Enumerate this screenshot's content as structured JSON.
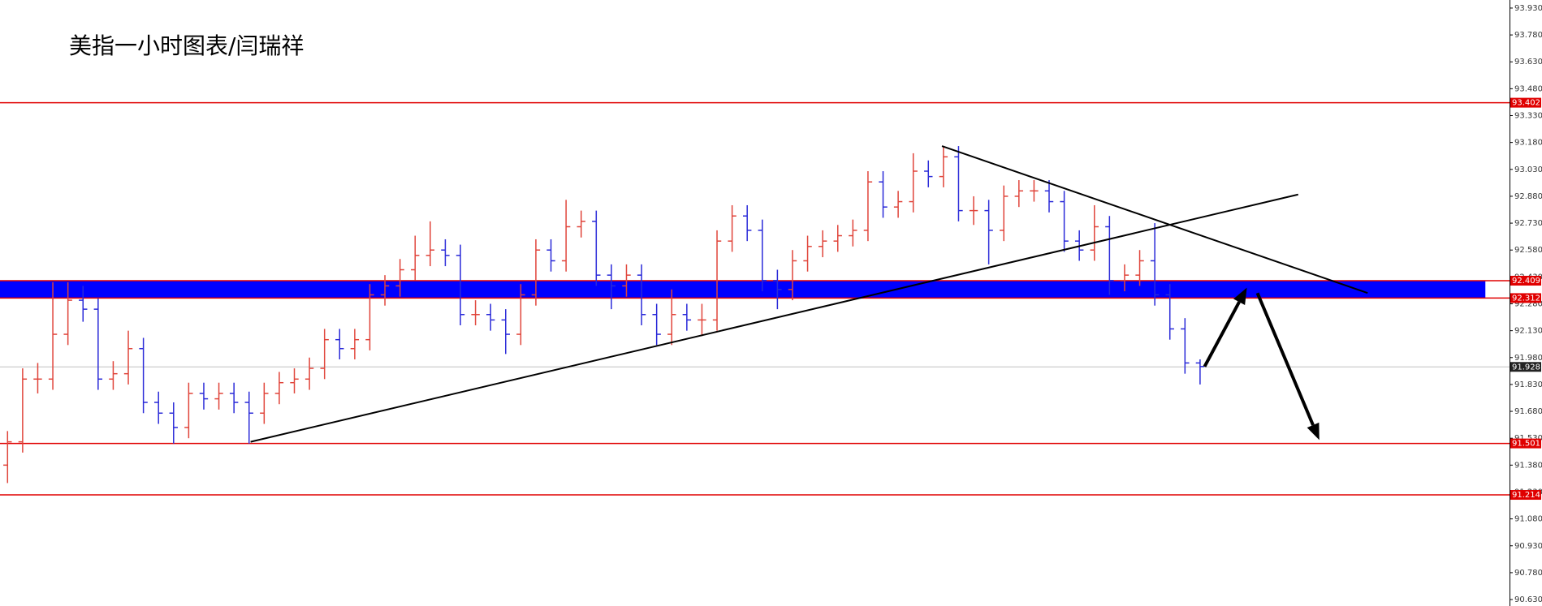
{
  "chart_data": {
    "type": "ohlc",
    "title": "美指一小时图表/闫瑞祥",
    "up_color": "#e0443a",
    "down_color": "#2a2ad8",
    "open": [
      91.38,
      91.51,
      91.86,
      91.86,
      92.11,
      92.3,
      92.25,
      91.86,
      91.89,
      92.03,
      91.73,
      91.67,
      91.59,
      91.78,
      91.75,
      91.78,
      91.73,
      91.67,
      91.78,
      91.84,
      91.86,
      91.92,
      92.08,
      92.03,
      92.08,
      92.33,
      92.38,
      92.47,
      92.55,
      92.58,
      92.55,
      92.22,
      92.22,
      92.19,
      92.11,
      92.33,
      92.58,
      92.52,
      92.71,
      92.74,
      92.44,
      92.38,
      92.44,
      92.22,
      92.11,
      92.22,
      92.19,
      92.19,
      92.63,
      92.77,
      92.69,
      92.41,
      92.36,
      92.52,
      92.6,
      92.63,
      92.66,
      92.69,
      92.96,
      92.82,
      92.85,
      93.02,
      92.99,
      93.1,
      92.8,
      92.8,
      92.69,
      92.88,
      92.91,
      92.91,
      92.85,
      92.63,
      92.58,
      92.71,
      92.41,
      92.44,
      92.52,
      92.33,
      92.14,
      91.95
    ],
    "high": [
      91.57,
      91.92,
      91.95,
      92.4,
      92.4,
      92.38,
      92.31,
      91.96,
      92.13,
      92.09,
      91.79,
      91.73,
      91.84,
      91.84,
      91.84,
      91.84,
      91.79,
      91.84,
      91.9,
      91.92,
      91.98,
      92.14,
      92.14,
      92.14,
      92.39,
      92.44,
      92.53,
      92.66,
      92.74,
      92.64,
      92.61,
      92.3,
      92.28,
      92.25,
      92.39,
      92.64,
      92.64,
      92.86,
      92.8,
      92.8,
      92.5,
      92.5,
      92.5,
      92.28,
      92.36,
      92.28,
      92.28,
      92.69,
      92.83,
      92.83,
      92.75,
      92.47,
      92.58,
      92.66,
      92.69,
      92.72,
      92.75,
      93.02,
      93.02,
      92.91,
      93.12,
      93.08,
      93.16,
      93.16,
      92.88,
      92.86,
      92.94,
      92.97,
      92.97,
      92.97,
      92.91,
      92.69,
      92.83,
      92.77,
      92.5,
      92.58,
      92.73,
      92.39,
      92.2,
      91.97
    ],
    "low": [
      91.28,
      91.45,
      91.78,
      91.8,
      92.05,
      92.18,
      91.8,
      91.8,
      91.83,
      91.67,
      91.61,
      91.5,
      91.53,
      91.69,
      91.69,
      91.67,
      91.5,
      91.61,
      91.72,
      91.78,
      91.8,
      91.86,
      91.97,
      91.97,
      92.02,
      92.27,
      92.32,
      92.41,
      92.49,
      92.49,
      92.16,
      92.16,
      92.13,
      92.0,
      92.05,
      92.27,
      92.46,
      92.46,
      92.65,
      92.38,
      92.25,
      92.32,
      92.16,
      92.05,
      92.05,
      92.13,
      92.1,
      92.13,
      92.57,
      92.63,
      92.35,
      92.25,
      92.3,
      92.46,
      92.54,
      92.57,
      92.6,
      92.63,
      92.76,
      92.76,
      92.79,
      92.93,
      92.93,
      92.74,
      92.72,
      92.5,
      92.63,
      92.82,
      92.85,
      92.79,
      92.57,
      92.52,
      92.52,
      92.33,
      92.35,
      92.38,
      92.27,
      92.08,
      91.89,
      91.83
    ],
    "close": [
      91.51,
      91.86,
      91.86,
      92.11,
      92.3,
      92.25,
      91.86,
      91.89,
      92.03,
      91.73,
      91.67,
      91.59,
      91.78,
      91.75,
      91.78,
      91.73,
      91.67,
      91.78,
      91.84,
      91.86,
      91.92,
      92.08,
      92.03,
      92.08,
      92.33,
      92.38,
      92.47,
      92.55,
      92.58,
      92.55,
      92.22,
      92.22,
      92.19,
      92.11,
      92.33,
      92.58,
      92.52,
      92.71,
      92.74,
      92.44,
      92.38,
      92.44,
      92.22,
      92.11,
      92.22,
      92.19,
      92.19,
      92.63,
      92.77,
      92.69,
      92.41,
      92.36,
      92.52,
      92.6,
      92.63,
      92.66,
      92.69,
      92.96,
      92.82,
      92.85,
      93.02,
      92.99,
      93.1,
      92.8,
      92.8,
      92.69,
      92.88,
      92.91,
      92.91,
      92.85,
      92.63,
      92.58,
      92.71,
      92.41,
      92.44,
      92.52,
      92.33,
      92.14,
      91.95,
      91.93
    ],
    "xlim": [
      -0.5,
      99.5
    ],
    "ylim": [
      90.594,
      93.975
    ],
    "yticks": [
      {
        "value": 90.63,
        "label": "90.630"
      },
      {
        "value": 90.78,
        "label": "90.780"
      },
      {
        "value": 90.93,
        "label": "90.930"
      },
      {
        "value": 91.08,
        "label": "91.080"
      },
      {
        "value": 91.23,
        "label": "91.230"
      },
      {
        "value": 91.38,
        "label": "91.380"
      },
      {
        "value": 91.53,
        "label": "91.530"
      },
      {
        "value": 91.68,
        "label": "91.680"
      },
      {
        "value": 91.83,
        "label": "91.830"
      },
      {
        "value": 91.98,
        "label": "91.980"
      },
      {
        "value": 92.13,
        "label": "92.130"
      },
      {
        "value": 92.28,
        "label": "92.280"
      },
      {
        "value": 92.43,
        "label": "92.430"
      },
      {
        "value": 92.58,
        "label": "92.580"
      },
      {
        "value": 92.73,
        "label": "92.730"
      },
      {
        "value": 92.88,
        "label": "92.880"
      },
      {
        "value": 93.03,
        "label": "93.030"
      },
      {
        "value": 93.18,
        "label": "93.180"
      },
      {
        "value": 93.33,
        "label": "93.330"
      },
      {
        "value": 93.48,
        "label": "93.480"
      },
      {
        "value": 93.63,
        "label": "93.630"
      },
      {
        "value": 93.78,
        "label": "93.780"
      },
      {
        "value": 93.93,
        "label": "93.930"
      }
    ],
    "levels": [
      93.402,
      92.409,
      92.312,
      91.501,
      91.214
    ],
    "level_color": "#e00000",
    "current_price": 91.928,
    "zone": {
      "from": 92.312,
      "to": 92.409,
      "x_end": 97.9,
      "color": "#0000ff"
    },
    "trendlines": [
      {
        "x": [
          16.1,
          85.5
        ],
        "y": [
          91.51,
          92.89
        ]
      },
      {
        "x": [
          61.9,
          90.1
        ],
        "y": [
          93.16,
          92.34
        ]
      }
    ],
    "arrows": [
      {
        "x": [
          79.3,
          82.1
        ],
        "y": [
          91.93,
          92.37
        ]
      },
      {
        "x": [
          82.8,
          86.9
        ],
        "y": [
          92.34,
          91.52
        ]
      }
    ]
  }
}
